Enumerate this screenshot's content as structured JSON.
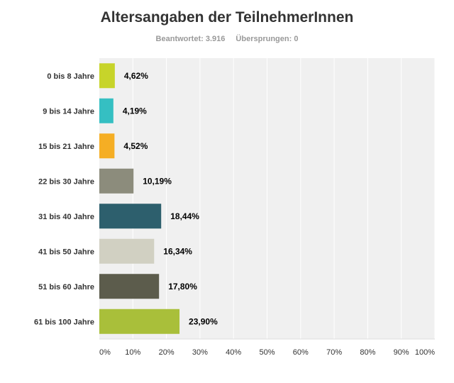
{
  "chart_data": {
    "type": "bar",
    "orientation": "horizontal",
    "title": "Altersangaben der TeilnehmerInnen",
    "answered_label": "Beantwortet: 3.916",
    "skipped_label": "Übersprungen: 0",
    "categories": [
      "0 bis 8 Jahre",
      "9 bis 14 Jahre",
      "15 bis 21 Jahre",
      "22 bis 30 Jahre",
      "31 bis 40 Jahre",
      "41 bis 50 Jahre",
      "51 bis 60 Jahre",
      "61 bis 100 Jahre"
    ],
    "values": [
      4.62,
      4.19,
      4.52,
      10.19,
      18.44,
      16.34,
      17.8,
      23.9
    ],
    "value_labels": [
      "4,62%",
      "4,19%",
      "4,52%",
      "10,19%",
      "18,44%",
      "16,34%",
      "17,80%",
      "23,90%"
    ],
    "colors": [
      "#c7d42a",
      "#35bfc2",
      "#f5ae24",
      "#8c8c7c",
      "#2d5f6d",
      "#d1d0c2",
      "#5c5c4c",
      "#a9bf3a"
    ],
    "xlim": [
      0,
      100
    ],
    "x_ticks": [
      "0%",
      "10%",
      "20%",
      "30%",
      "40%",
      "50%",
      "60%",
      "70%",
      "80%",
      "90%",
      "100%"
    ],
    "grid": true,
    "background_color": "#f0f0f0"
  }
}
